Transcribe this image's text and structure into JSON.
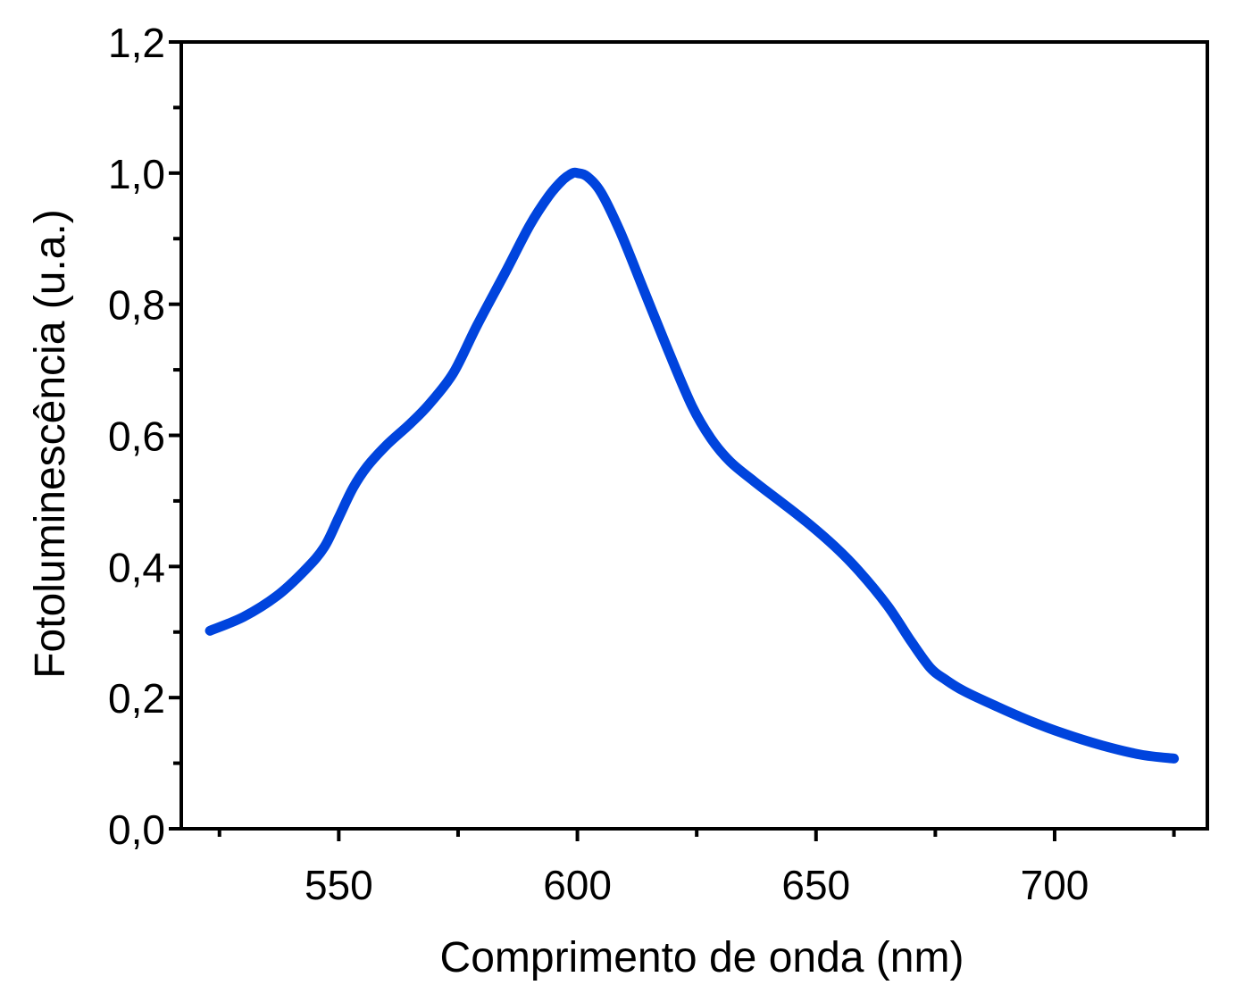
{
  "chart_data": {
    "type": "line",
    "title": "",
    "xlabel": "Comprimento de onda (nm)",
    "ylabel": "Fotoluminescência (u.a.)",
    "xlim": [
      517,
      732
    ],
    "ylim": [
      0,
      1.2
    ],
    "x_ticks": [
      550,
      600,
      650,
      700
    ],
    "x_tick_labels": [
      "550",
      "600",
      "650",
      "700"
    ],
    "x_minor_ticks": [
      525,
      575,
      625,
      675,
      725
    ],
    "y_ticks": [
      0,
      0.2,
      0.4,
      0.6,
      0.8,
      1.0,
      1.2
    ],
    "y_tick_labels": [
      "0,0",
      "0,2",
      "0,4",
      "0,6",
      "0,8",
      "1,0",
      "1,2"
    ],
    "y_minor_ticks": [
      0.1,
      0.3,
      0.5,
      0.7,
      0.9,
      1.1
    ],
    "grid": false,
    "legend": "none",
    "series_color": "#0044dd",
    "series": [
      {
        "x": [
          523,
          530,
          537,
          543,
          547,
          550,
          553,
          556,
          560,
          565,
          569,
          574,
          579,
          585,
          590,
          594,
          597,
          599,
          600,
          602,
          605,
          609,
          614,
          619,
          624,
          628,
          632,
          637,
          642,
          648,
          654,
          659,
          665,
          670,
          674,
          677,
          681,
          688,
          695,
          702,
          710,
          718,
          725
        ],
        "y": [
          0.302,
          0.323,
          0.355,
          0.395,
          0.43,
          0.475,
          0.52,
          0.553,
          0.585,
          0.618,
          0.648,
          0.695,
          0.768,
          0.85,
          0.92,
          0.965,
          0.99,
          1.0,
          1.0,
          0.995,
          0.97,
          0.91,
          0.82,
          0.73,
          0.645,
          0.595,
          0.56,
          0.53,
          0.502,
          0.468,
          0.43,
          0.393,
          0.34,
          0.285,
          0.245,
          0.228,
          0.21,
          0.186,
          0.164,
          0.145,
          0.127,
          0.113,
          0.107
        ]
      }
    ]
  }
}
